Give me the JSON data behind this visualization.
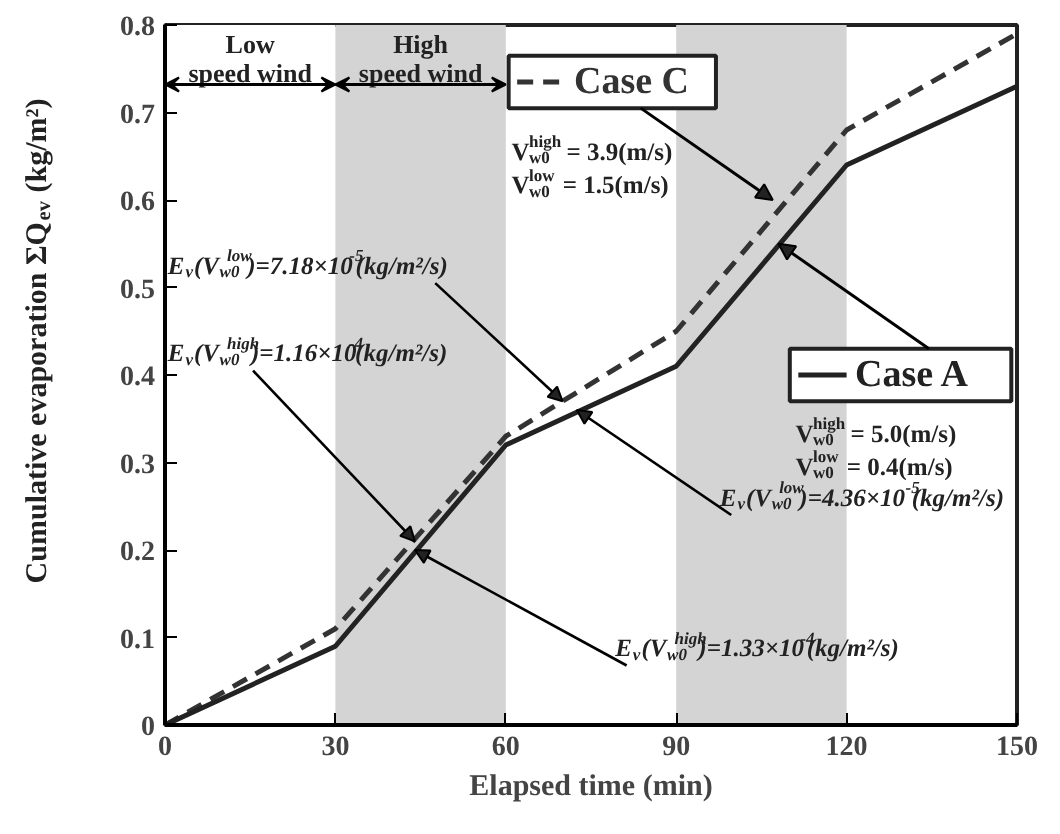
{
  "chart_data": {
    "type": "line",
    "xlabel": "Elapsed time (min)",
    "ylabel": "Cumulative evaporation ΣQ$_{ev}$ (kg/m²)",
    "x": [
      0,
      30,
      60,
      90,
      120,
      150
    ],
    "series": [
      {
        "name": "Case C",
        "color": "#333333",
        "line_style": "dashed",
        "values": [
          0,
          0.11,
          0.33,
          0.45,
          0.68,
          0.79
        ]
      },
      {
        "name": "Case A",
        "color": "#222222",
        "line_style": "solid",
        "values": [
          0,
          0.09,
          0.32,
          0.41,
          0.64,
          0.73
        ]
      }
    ],
    "xlim": [
      0,
      150
    ],
    "ylim": [
      0,
      0.8
    ],
    "xticks": [
      0,
      30,
      60,
      90,
      120,
      150
    ],
    "yticks": [
      0,
      0.1,
      0.2,
      0.3,
      0.4,
      0.5,
      0.6,
      0.7,
      0.8
    ],
    "grid": false,
    "marker": "none",
    "legend": "right",
    "bands": [
      {
        "axis": "x",
        "from": 0,
        "to": 30,
        "label": "Low speed wind",
        "color": "#ffffff"
      },
      {
        "axis": "x",
        "from": 30,
        "to": 60,
        "label": "High speed wind",
        "color": "#d4d4d4"
      },
      {
        "axis": "x",
        "from": 90,
        "to": 120,
        "color": "#d4d4d4"
      }
    ],
    "annotations": [
      {
        "text": "E$_{v}$(V$^{low}$$_{w0}$)=7.18×10$^{-5}$(kg/m²/s)",
        "x": 70,
        "y": 0.37
      },
      {
        "text": "E$_{v}$(V$^{high}$$_{w0}$)=1.16×10$^{-4}$(kg/m²/s)",
        "x": 44,
        "y": 0.21
      },
      {
        "text": "E$_{v}$(V$^{low}$$_{w0}$)=4.36×10$^{-5}$(kg/m²/s)",
        "x": 72.5,
        "y": 0.36
      },
      {
        "text": "E$_{v}$(V$^{high}$$_{w0}$)=1.33×10$^{-4}$(kg/m²/s)",
        "x": 44,
        "y": 0.2
      },
      "V$^{high}$$_{w0}$ = 3.9(m/s)",
      "V$^{low}$$_{w0}$ = 1.5(m/s)",
      "V$^{high}$$_{w0}$ = 5.0(m/s)",
      "V$^{low}$$_{w0}$ = 0.4(m/s)"
    ]
  }
}
